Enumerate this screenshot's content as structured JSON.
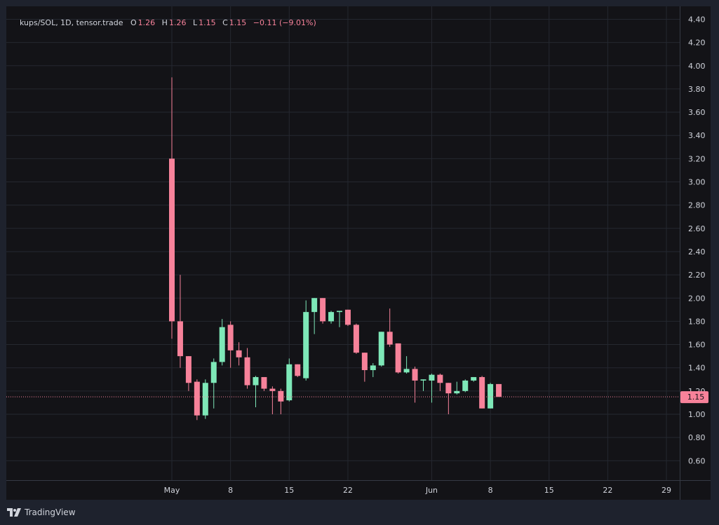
{
  "legend": {
    "symbol": "kups/SOL, 1D, tensor.trade",
    "open_label": "O",
    "open": "1.26",
    "high_label": "H",
    "high": "1.26",
    "low_label": "L",
    "low": "1.15",
    "close_label": "C",
    "close": "1.15",
    "change": "−0.11 (−9.01%)"
  },
  "price_tag": "1.15",
  "branding": {
    "name": "TradingView"
  },
  "colors": {
    "up": "#7ee8b8",
    "down": "#f7829a",
    "grid": "#252830",
    "text": "#d1d4dc",
    "background": "#131317"
  },
  "chart_data": {
    "type": "candlestick",
    "title": "",
    "xlabel": "",
    "ylabel": "",
    "yticks": [
      "0.60",
      "0.80",
      "1.00",
      "1.20",
      "1.40",
      "1.60",
      "1.80",
      "2.00",
      "2.20",
      "2.40",
      "2.60",
      "2.80",
      "3.00",
      "3.20",
      "3.40",
      "3.60",
      "3.80",
      "4.00",
      "4.20",
      "4.40"
    ],
    "xticks": [
      {
        "label": "May",
        "day": 1
      },
      {
        "label": "8",
        "day": 8
      },
      {
        "label": "15",
        "day": 15
      },
      {
        "label": "22",
        "day": 22
      },
      {
        "label": "Jun",
        "day": 32
      },
      {
        "label": "8",
        "day": 39
      },
      {
        "label": "15",
        "day": 46
      },
      {
        "label": "22",
        "day": 53
      },
      {
        "label": "29",
        "day": 60
      }
    ],
    "last_price": 1.15,
    "candles": [
      {
        "day": 1,
        "o": 3.2,
        "h": 3.9,
        "l": 1.65,
        "c": 1.8
      },
      {
        "day": 2,
        "o": 1.8,
        "h": 2.2,
        "l": 1.4,
        "c": 1.5
      },
      {
        "day": 3,
        "o": 1.5,
        "h": 1.5,
        "l": 1.2,
        "c": 1.27
      },
      {
        "day": 4,
        "o": 1.28,
        "h": 1.3,
        "l": 0.95,
        "c": 0.99
      },
      {
        "day": 5,
        "o": 0.99,
        "h": 1.3,
        "l": 0.96,
        "c": 1.27
      },
      {
        "day": 6,
        "o": 1.27,
        "h": 1.48,
        "l": 1.05,
        "c": 1.45
      },
      {
        "day": 7,
        "o": 1.45,
        "h": 1.82,
        "l": 1.42,
        "c": 1.75
      },
      {
        "day": 8,
        "o": 1.77,
        "h": 1.8,
        "l": 1.4,
        "c": 1.55
      },
      {
        "day": 9,
        "o": 1.55,
        "h": 1.62,
        "l": 1.42,
        "c": 1.49
      },
      {
        "day": 10,
        "o": 1.49,
        "h": 1.57,
        "l": 1.22,
        "c": 1.25
      },
      {
        "day": 11,
        "o": 1.25,
        "h": 1.33,
        "l": 1.06,
        "c": 1.32
      },
      {
        "day": 12,
        "o": 1.32,
        "h": 1.32,
        "l": 1.2,
        "c": 1.22
      },
      {
        "day": 13,
        "o": 1.22,
        "h": 1.24,
        "l": 1.0,
        "c": 1.2
      },
      {
        "day": 14,
        "o": 1.2,
        "h": 1.22,
        "l": 1.0,
        "c": 1.11
      },
      {
        "day": 15,
        "o": 1.12,
        "h": 1.48,
        "l": 1.11,
        "c": 1.43
      },
      {
        "day": 16,
        "o": 1.43,
        "h": 1.43,
        "l": 1.32,
        "c": 1.33
      },
      {
        "day": 17,
        "o": 1.31,
        "h": 1.98,
        "l": 1.29,
        "c": 1.88
      },
      {
        "day": 18,
        "o": 1.88,
        "h": 2.0,
        "l": 1.69,
        "c": 2.0
      },
      {
        "day": 19,
        "o": 2.0,
        "h": 2.0,
        "l": 1.78,
        "c": 1.8
      },
      {
        "day": 20,
        "o": 1.8,
        "h": 1.89,
        "l": 1.78,
        "c": 1.88
      },
      {
        "day": 21,
        "o": 1.88,
        "h": 1.89,
        "l": 1.75,
        "c": 1.89
      },
      {
        "day": 22,
        "o": 1.9,
        "h": 1.9,
        "l": 1.76,
        "c": 1.77
      },
      {
        "day": 23,
        "o": 1.77,
        "h": 1.78,
        "l": 1.52,
        "c": 1.53
      },
      {
        "day": 24,
        "o": 1.53,
        "h": 1.53,
        "l": 1.28,
        "c": 1.38
      },
      {
        "day": 25,
        "o": 1.38,
        "h": 1.44,
        "l": 1.32,
        "c": 1.42
      },
      {
        "day": 26,
        "o": 1.42,
        "h": 1.71,
        "l": 1.41,
        "c": 1.71
      },
      {
        "day": 27,
        "o": 1.71,
        "h": 1.91,
        "l": 1.58,
        "c": 1.6
      },
      {
        "day": 28,
        "o": 1.61,
        "h": 1.61,
        "l": 1.35,
        "c": 1.36
      },
      {
        "day": 29,
        "o": 1.36,
        "h": 1.5,
        "l": 1.35,
        "c": 1.39
      },
      {
        "day": 30,
        "o": 1.39,
        "h": 1.41,
        "l": 1.1,
        "c": 1.29
      },
      {
        "day": 31,
        "o": 1.29,
        "h": 1.3,
        "l": 1.2,
        "c": 1.3
      },
      {
        "day": 32,
        "o": 1.29,
        "h": 1.35,
        "l": 1.1,
        "c": 1.34
      },
      {
        "day": 33,
        "o": 1.34,
        "h": 1.35,
        "l": 1.2,
        "c": 1.27
      },
      {
        "day": 34,
        "o": 1.27,
        "h": 1.27,
        "l": 1.0,
        "c": 1.18
      },
      {
        "day": 35,
        "o": 1.18,
        "h": 1.28,
        "l": 1.17,
        "c": 1.2
      },
      {
        "day": 36,
        "o": 1.2,
        "h": 1.3,
        "l": 1.19,
        "c": 1.29
      },
      {
        "day": 37,
        "o": 1.29,
        "h": 1.32,
        "l": 1.28,
        "c": 1.32
      },
      {
        "day": 38,
        "o": 1.32,
        "h": 1.33,
        "l": 1.05,
        "c": 1.05
      },
      {
        "day": 39,
        "o": 1.05,
        "h": 1.27,
        "l": 1.05,
        "c": 1.26
      },
      {
        "day": 40,
        "o": 1.26,
        "h": 1.26,
        "l": 1.15,
        "c": 1.15
      }
    ]
  }
}
